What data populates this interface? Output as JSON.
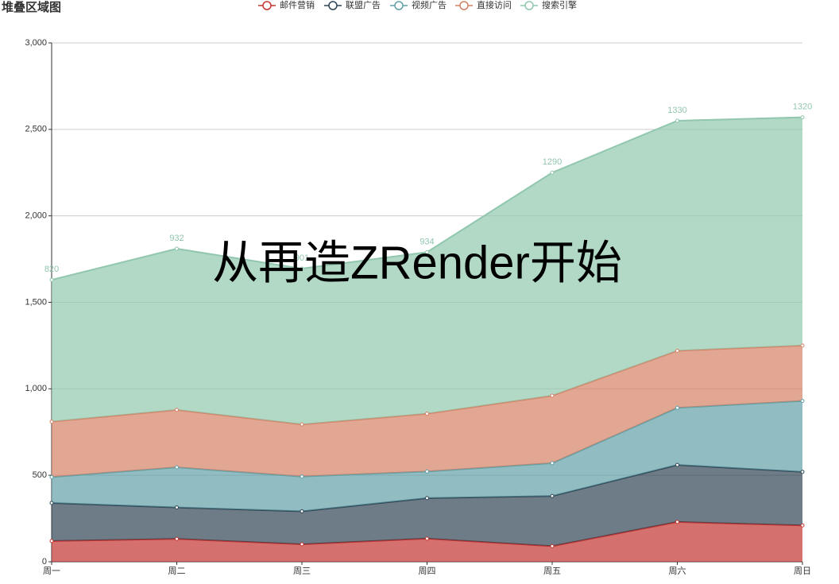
{
  "chart_data": {
    "type": "stacked_area",
    "title": "堆叠区域图",
    "annotation": "从再造ZRender开始",
    "categories": [
      "周一",
      "周二",
      "周三",
      "周四",
      "周五",
      "周六",
      "周日"
    ],
    "series": [
      {
        "name": "邮件营销",
        "color": "#c23531",
        "values": [
          120,
          132,
          101,
          134,
          90,
          230,
          210
        ]
      },
      {
        "name": "联盟广告",
        "color": "#2f4554",
        "values": [
          220,
          182,
          191,
          234,
          290,
          330,
          310
        ]
      },
      {
        "name": "视频广告",
        "color": "#61a0a8",
        "values": [
          150,
          232,
          201,
          154,
          190,
          330,
          410
        ]
      },
      {
        "name": "直接访问",
        "color": "#d48265",
        "values": [
          320,
          332,
          301,
          334,
          390,
          330,
          320
        ]
      },
      {
        "name": "搜索引擎",
        "color": "#91c7ae",
        "values": [
          820,
          932,
          901,
          934,
          1290,
          1330,
          1320
        ],
        "show_labels": true
      }
    ],
    "ylim": [
      0,
      3000
    ],
    "yticks": [
      0,
      500,
      {
        "value": 1000,
        "label": "1,000"
      },
      {
        "value": 1500,
        "label": "1,500"
      },
      {
        "value": 2000,
        "label": "2,000"
      },
      {
        "value": 2500,
        "label": "2,500"
      },
      {
        "value": 3000,
        "label": "3,000"
      }
    ],
    "grid": true,
    "legend": "top"
  }
}
